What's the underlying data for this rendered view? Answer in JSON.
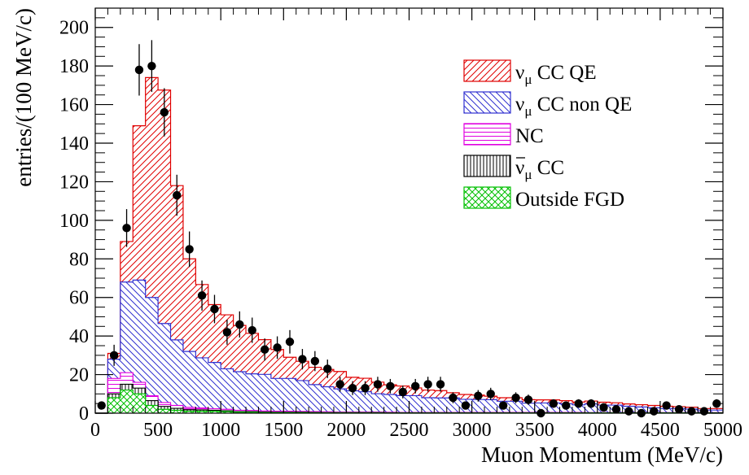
{
  "chart_data": {
    "type": "histogram",
    "title": "",
    "xlabel": "Muon Momentum (MeV/c)",
    "ylabel": "entries/(100 MeV/c)",
    "xlim": [
      0,
      5000
    ],
    "ylim": [
      0,
      210
    ],
    "bin_width": 100,
    "x_ticks": [
      0,
      500,
      1000,
      1500,
      2000,
      2500,
      3000,
      3500,
      4000,
      4500,
      5000
    ],
    "x_tick_labels": [
      "0",
      "500",
      "1000",
      "1500",
      "2000",
      "2500",
      "3000",
      "3500",
      "4000",
      "4500",
      "5000"
    ],
    "y_ticks": [
      0,
      20,
      40,
      60,
      80,
      100,
      120,
      140,
      160,
      180,
      200
    ],
    "y_tick_labels": [
      "0",
      "20",
      "40",
      "60",
      "80",
      "100",
      "120",
      "140",
      "160",
      "180",
      "200"
    ],
    "grid": false,
    "legend_position": "top-right",
    "bin_edges": [
      0,
      100,
      200,
      300,
      400,
      500,
      600,
      700,
      800,
      900,
      1000,
      1100,
      1200,
      1300,
      1400,
      1500,
      1600,
      1700,
      1800,
      1900,
      2000,
      2100,
      2200,
      2300,
      2400,
      2500,
      2600,
      2700,
      2800,
      2900,
      3000,
      3100,
      3200,
      3300,
      3400,
      3500,
      3600,
      3700,
      3800,
      3900,
      4000,
      4100,
      4200,
      4300,
      4400,
      4500,
      4600,
      4700,
      4800,
      4900,
      5000
    ],
    "stacked_series": [
      {
        "key": "outside_fgd",
        "name": "Outside FGD",
        "color": "#00c000",
        "pattern": "crosshatch",
        "values": [
          0,
          8,
          12,
          10,
          4,
          2,
          1.5,
          1,
          1,
          1,
          0.8,
          0.5,
          0.5,
          0.4,
          0.3,
          0.3,
          0.3,
          0.2,
          0.2,
          0.2,
          0.2,
          0.2,
          0.2,
          0.1,
          0.1,
          0.1,
          0.1,
          0.1,
          0.1,
          0.1,
          0.1,
          0.1,
          0.1,
          0.1,
          0.1,
          0.1,
          0.1,
          0.1,
          0.1,
          0.1,
          0.1,
          0.1,
          0.1,
          0.1,
          0.1,
          0.1,
          0.1,
          0.1,
          0.1,
          0.1
        ]
      },
      {
        "key": "anti_numu_cc",
        "name": "ν̄μ CC",
        "color": "#000000",
        "pattern": "vertical",
        "values": [
          0,
          2,
          3,
          3,
          2.5,
          1.5,
          1,
          0.8,
          0.7,
          0.5,
          0.4,
          0.3,
          0.3,
          0.2,
          0.2,
          0.2,
          0.2,
          0.2,
          0.1,
          0.1,
          0.1,
          0.1,
          0.1,
          0.1,
          0.1,
          0.1,
          0.1,
          0.1,
          0.1,
          0.1,
          0.1,
          0.1,
          0.1,
          0.1,
          0.1,
          0.1,
          0.1,
          0.1,
          0.1,
          0.1,
          0.1,
          0.1,
          0.1,
          0.1,
          0.1,
          0.1,
          0.1,
          0.1,
          0.1,
          0.1
        ]
      },
      {
        "key": "nc",
        "name": "NC",
        "color": "#e000e0",
        "pattern": "horizontal",
        "values": [
          0,
          8,
          6,
          3,
          2.5,
          2,
          1.5,
          1.2,
          1,
          0.8,
          0.8,
          0.7,
          0.6,
          0.5,
          0.5,
          0.5,
          0.4,
          0.4,
          0.4,
          0.3,
          0.3,
          0.3,
          0.3,
          0.3,
          0.2,
          0.2,
          0.2,
          0.2,
          0.2,
          0.2,
          0.2,
          0.2,
          0.2,
          0.2,
          0.2,
          0.2,
          0.2,
          0.2,
          0.2,
          0.1,
          0.1,
          0.1,
          0.1,
          0.1,
          0.1,
          0.1,
          0.1,
          0.1,
          0.1,
          0.1
        ]
      },
      {
        "key": "numu_cc_nonqe",
        "name": "νμ CC non QE",
        "color": "#3030d0",
        "pattern": "backslash",
        "values": [
          0,
          10,
          47,
          53,
          51,
          41,
          34,
          29,
          26,
          24,
          21,
          20,
          19,
          19,
          17,
          17,
          16,
          14,
          13,
          12,
          11,
          10.5,
          9.5,
          9.2,
          8.7,
          8.7,
          7.6,
          7.5,
          7.5,
          6.8,
          6.7,
          6.6,
          5.8,
          5.8,
          4.8,
          4.9,
          4.9,
          4.5,
          3.9,
          4.5,
          3.9,
          3.9,
          3.3,
          2.9,
          2.5,
          2.1,
          2.1,
          1.8,
          1.3,
          1.3
        ]
      },
      {
        "key": "numu_ccqe",
        "name": "νμ CC QE",
        "color": "#e00000",
        "pattern": "slash",
        "values": [
          0,
          3,
          21,
          80,
          114,
          121,
          80,
          48,
          38,
          30,
          28,
          24,
          21,
          18,
          15,
          11,
          10,
          9,
          9,
          9,
          7,
          7,
          6,
          5,
          5,
          4,
          4,
          3.8,
          2.7,
          2.5,
          2.3,
          1.8,
          1.8,
          1.8,
          1.8,
          1.6,
          1.6,
          1.6,
          1.5,
          1.5,
          1.5,
          1.2,
          1.2,
          1.2,
          1.2,
          1.2,
          1,
          1,
          0.8,
          0.8
        ]
      }
    ],
    "legend": [
      {
        "key": "numu_ccqe",
        "prefix": "ν",
        "subscript": "μ",
        "suffix": " CC QE",
        "overbar": false
      },
      {
        "key": "numu_cc_nonqe",
        "prefix": "ν",
        "subscript": "μ",
        "suffix": " CC non QE",
        "overbar": false
      },
      {
        "key": "nc",
        "prefix": "NC",
        "subscript": "",
        "suffix": "",
        "overbar": false
      },
      {
        "key": "anti_numu_cc",
        "prefix": "ν",
        "subscript": "μ",
        "suffix": " CC",
        "overbar": true
      },
      {
        "key": "outside_fgd",
        "prefix": "Outside FGD",
        "subscript": "",
        "suffix": "",
        "overbar": false
      }
    ],
    "data_points": {
      "name": "Data",
      "color": "#000000",
      "x": [
        50,
        150,
        250,
        350,
        450,
        550,
        650,
        750,
        850,
        950,
        1050,
        1150,
        1250,
        1350,
        1450,
        1550,
        1650,
        1750,
        1850,
        1950,
        2050,
        2150,
        2250,
        2350,
        2450,
        2550,
        2650,
        2750,
        2850,
        2950,
        3050,
        3150,
        3250,
        3350,
        3450,
        3550,
        3650,
        3750,
        3850,
        3950,
        4050,
        4150,
        4250,
        4350,
        4450,
        4550,
        4650,
        4750,
        4850,
        4950
      ],
      "y": [
        4,
        30,
        96,
        178,
        180,
        156,
        113,
        85,
        61,
        54,
        42,
        46,
        43,
        33,
        34,
        37,
        28,
        27,
        23,
        15,
        13,
        13,
        15,
        14,
        11,
        14,
        15,
        15,
        8,
        4,
        9,
        10,
        4,
        8,
        7,
        0,
        5,
        4,
        5,
        5,
        3,
        2,
        1,
        0,
        1,
        4,
        2,
        1,
        1,
        5
      ]
    }
  }
}
